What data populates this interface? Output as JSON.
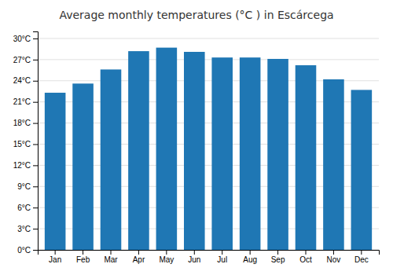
{
  "chart_data": {
    "type": "bar",
    "title": "Average monthly temperatures (°C ) in Escárcega",
    "categories": [
      "Jan",
      "Feb",
      "Mar",
      "Apr",
      "May",
      "Jun",
      "Jul",
      "Aug",
      "Sep",
      "Oct",
      "Nov",
      "Dec"
    ],
    "values": [
      22.3,
      23.6,
      25.6,
      28.2,
      28.7,
      28.1,
      27.3,
      27.3,
      27.1,
      26.2,
      24.2,
      22.7
    ],
    "ylim": [
      0,
      31
    ],
    "yticks": [
      {
        "value": 0,
        "label": "0°C"
      },
      {
        "value": 3,
        "label": "3°C"
      },
      {
        "value": 6,
        "label": "6°C"
      },
      {
        "value": 9,
        "label": "9°C"
      },
      {
        "value": 12,
        "label": "12°C"
      },
      {
        "value": 15,
        "label": "15°C"
      },
      {
        "value": 18,
        "label": "18°C"
      },
      {
        "value": 21,
        "label": "21°C"
      },
      {
        "value": 24,
        "label": "24°C"
      },
      {
        "value": 27,
        "label": "27°C"
      },
      {
        "value": 30,
        "label": "30°C"
      }
    ],
    "grid": true
  }
}
